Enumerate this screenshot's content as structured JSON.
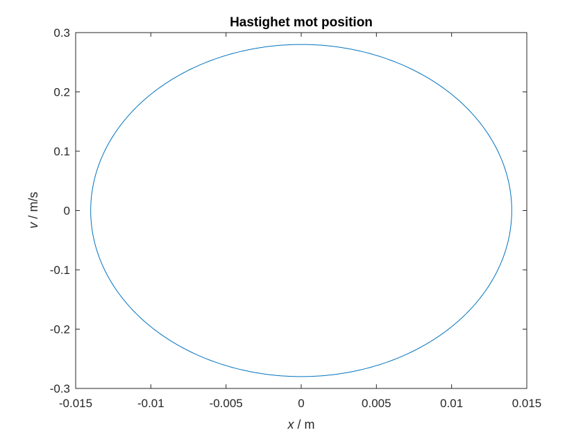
{
  "chart_data": {
    "type": "line",
    "title": "Hastighet mot position",
    "xlabel_var": "x",
    "xlabel_unit": " / m",
    "ylabel_var": "v",
    "ylabel_unit": " / m/s",
    "xlim": [
      -0.015,
      0.015
    ],
    "ylim": [
      -0.3,
      0.3
    ],
    "xticks": [
      -0.015,
      -0.01,
      -0.005,
      0,
      0.005,
      0.01,
      0.015
    ],
    "xtick_labels": [
      "-0.015",
      "-0.01",
      "-0.005",
      "0",
      "0.005",
      "0.01",
      "0.015"
    ],
    "yticks": [
      -0.3,
      -0.2,
      -0.1,
      0,
      0.1,
      0.2,
      0.3
    ],
    "ytick_labels": [
      "-0.3",
      "-0.2",
      "-0.1",
      "0",
      "0.1",
      "0.2",
      "0.3"
    ],
    "grid": false,
    "series": [
      {
        "shape": "ellipse",
        "center": [
          0,
          0
        ],
        "x_amplitude": 0.014,
        "v_amplitude": 0.28,
        "color": "#0072BD"
      }
    ]
  }
}
